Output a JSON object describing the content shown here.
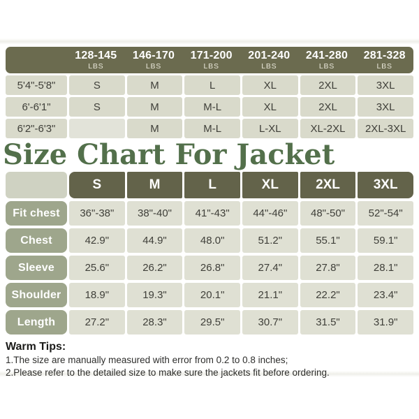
{
  "title": "Size Chart For Jacket",
  "weight_table": {
    "columns": [
      {
        "range": "128-145",
        "unit": "LBS"
      },
      {
        "range": "146-170",
        "unit": "LBS"
      },
      {
        "range": "171-200",
        "unit": "LBS"
      },
      {
        "range": "201-240",
        "unit": "LBS"
      },
      {
        "range": "241-280",
        "unit": "LBS"
      },
      {
        "range": "281-328",
        "unit": "LBS"
      }
    ],
    "rows": [
      {
        "label": "5'4\"-5'8\"",
        "values": [
          "S",
          "M",
          "L",
          "XL",
          "2XL",
          "3XL"
        ]
      },
      {
        "label": "6'-6'1\"",
        "values": [
          "S",
          "M",
          "M-L",
          "XL",
          "2XL",
          "3XL"
        ]
      },
      {
        "label": "6'2\"-6'3\"",
        "values": [
          "",
          "M",
          "M-L",
          "L-XL",
          "XL-2XL",
          "2XL-3XL"
        ]
      }
    ]
  },
  "size_table": {
    "columns": [
      "S",
      "M",
      "L",
      "XL",
      "2XL",
      "3XL"
    ],
    "rows": [
      {
        "label": "Fit chest",
        "values": [
          "36\"-38\"",
          "38\"-40\"",
          "41\"-43\"",
          "44\"-46\"",
          "48\"-50\"",
          "52\"-54\""
        ]
      },
      {
        "label": "Chest",
        "values": [
          "42.9\"",
          "44.9\"",
          "48.0\"",
          "51.2\"",
          "55.1\"",
          "59.1\""
        ]
      },
      {
        "label": "Sleeve",
        "values": [
          "25.6\"",
          "26.2\"",
          "26.8\"",
          "27.4\"",
          "27.8\"",
          "28.1\""
        ]
      },
      {
        "label": "Shoulder",
        "values": [
          "18.9\"",
          "19.3\"",
          "20.1\"",
          "21.1\"",
          "22.2\"",
          "23.4\""
        ]
      },
      {
        "label": "Length",
        "values": [
          "27.2\"",
          "28.3\"",
          "29.5\"",
          "30.7\"",
          "31.5\"",
          "31.9\""
        ]
      }
    ]
  },
  "warm_tips": {
    "heading": "Warm Tips:",
    "lines": [
      "1.The size are manually measured with error from 0.2 to 0.8 inches;",
      "2.Please refer to the detailed size to make sure the jackets fit before ordering."
    ]
  },
  "colors": {
    "header_olive": "#6b6b4f",
    "header_olive_dark": "#63634a",
    "cell_light": "#d9dacb",
    "cell_light2": "#dfe0d3",
    "row_label_sage": "#9ea68c",
    "corner_cell": "#cfd2c2",
    "title_green": "#53704b"
  }
}
